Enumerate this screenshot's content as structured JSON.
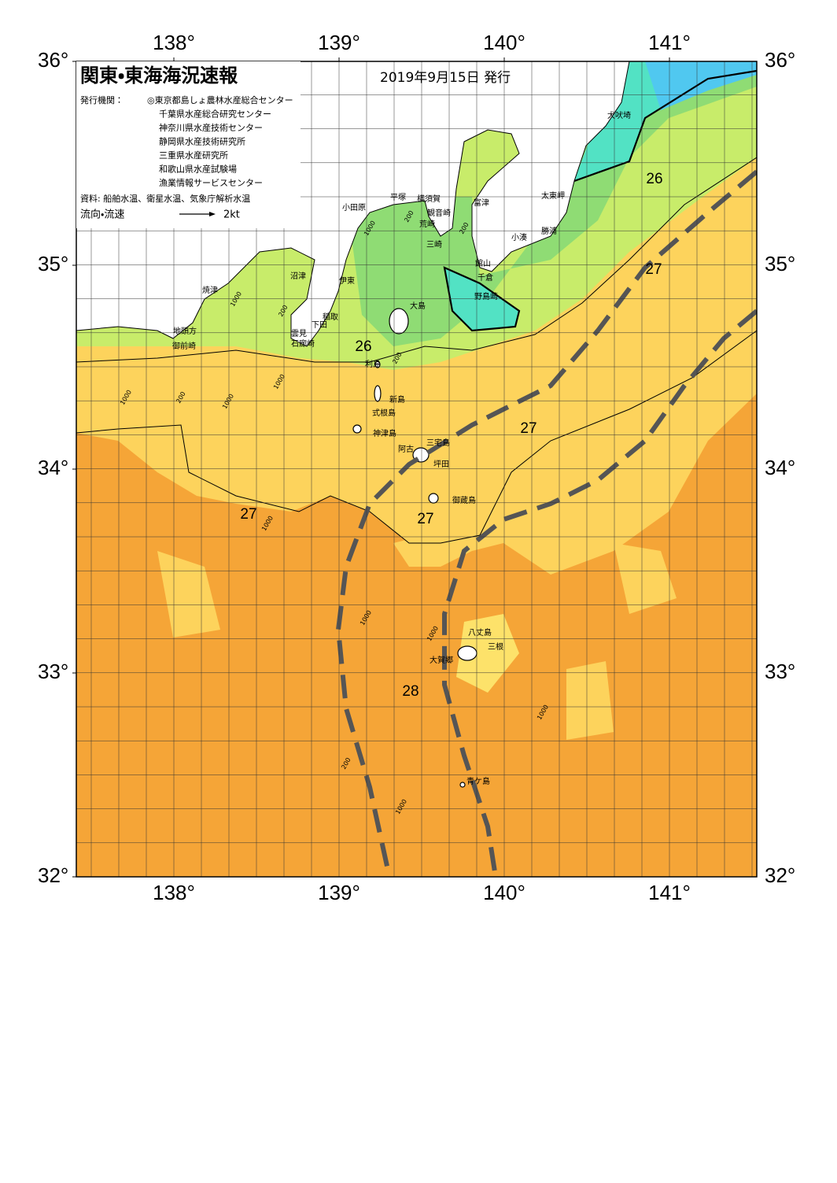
{
  "title": "関東・東海海況速報",
  "issued": "2019年9月15日 発行",
  "agencies_label": "発行機関：",
  "agencies": [
    "◎東京都島しょ農林水産総合センター",
    "千葉県水産総合研究センター",
    "神奈川県水産技術センター",
    "静岡県水産技術研究所",
    "三重県水産研究所",
    "和歌山県水産試験場",
    "漁業情報サービスセンター"
  ],
  "sources": "資料: 船舶水温、衛星水温、気象庁解析水温",
  "flow_legend": {
    "label": "流向・流速",
    "speed": "2kt"
  },
  "lon_ticks": [
    {
      "value": 138,
      "label": "138°"
    },
    {
      "value": 139,
      "label": "139°"
    },
    {
      "value": 140,
      "label": "140°"
    },
    {
      "value": 141,
      "label": "141°"
    }
  ],
  "lat_ticks": [
    {
      "value": 36,
      "label": "36°"
    },
    {
      "value": 35,
      "label": "35°"
    },
    {
      "value": 34,
      "label": "34°"
    },
    {
      "value": 33,
      "label": "33°"
    },
    {
      "value": 32,
      "label": "32°"
    }
  ],
  "places": [
    "犬吠埼",
    "太東岬",
    "勝浦",
    "小湊",
    "館山",
    "千倉",
    "野島崎",
    "富津",
    "観音崎",
    "横須賀",
    "荒崎",
    "三崎",
    "平塚",
    "小田原",
    "大島",
    "伊東",
    "稲取",
    "下田",
    "雲見",
    "石廊崎",
    "沼津",
    "焼津",
    "地頭方",
    "御前崎",
    "利島",
    "新島",
    "式根島",
    "神津島",
    "三宅島",
    "阿古",
    "坪田",
    "御蔵島",
    "八丈島",
    "三根",
    "大賀郷",
    "青ケ島"
  ],
  "isotherm_labels": [
    26,
    26,
    27,
    27,
    27,
    27,
    28
  ],
  "depth_labels": [
    1000,
    200,
    200,
    1000,
    200,
    1000,
    200,
    1000,
    1000,
    200,
    1000,
    1000,
    1000,
    1000,
    200,
    1000
  ]
}
